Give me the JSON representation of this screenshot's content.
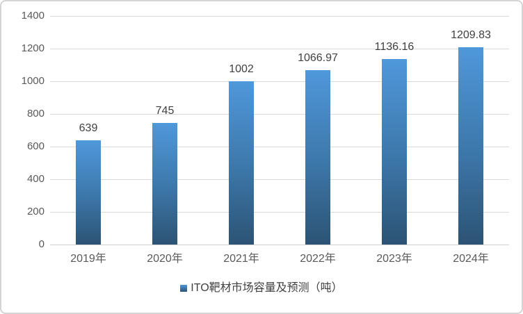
{
  "chart_data": {
    "type": "bar",
    "title": "",
    "categories": [
      "2019年",
      "2020年",
      "2021年",
      "2022年",
      "2023年",
      "2024年"
    ],
    "values": [
      639,
      745,
      1002,
      1066.97,
      1136.16,
      1209.83
    ],
    "value_labels": [
      "639",
      "745",
      "1002",
      "1066.97",
      "1136.16",
      "1209.83"
    ],
    "series_name": "ITO靶材市场容量及预测（吨）",
    "xlabel": "",
    "ylabel": "",
    "ylim": [
      0,
      1400
    ],
    "ytick_interval": 200,
    "ytick_labels": [
      "0",
      "200",
      "400",
      "600",
      "800",
      "1000",
      "1200",
      "1400"
    ],
    "grid": true,
    "legend_position": "bottom",
    "colors": {
      "bar_gradient_top": "#4f98db",
      "bar_gradient_bottom": "#2c5374",
      "gridline": "#d9d9d9",
      "axis_text": "#595959",
      "data_label_text": "#404040",
      "chart_border": "#d4d4d4",
      "background": "#ffffff"
    }
  },
  "legend": {
    "marker_icon": "blue-gradient-square-icon",
    "label": "ITO靶材市场容量及预测（吨）"
  }
}
